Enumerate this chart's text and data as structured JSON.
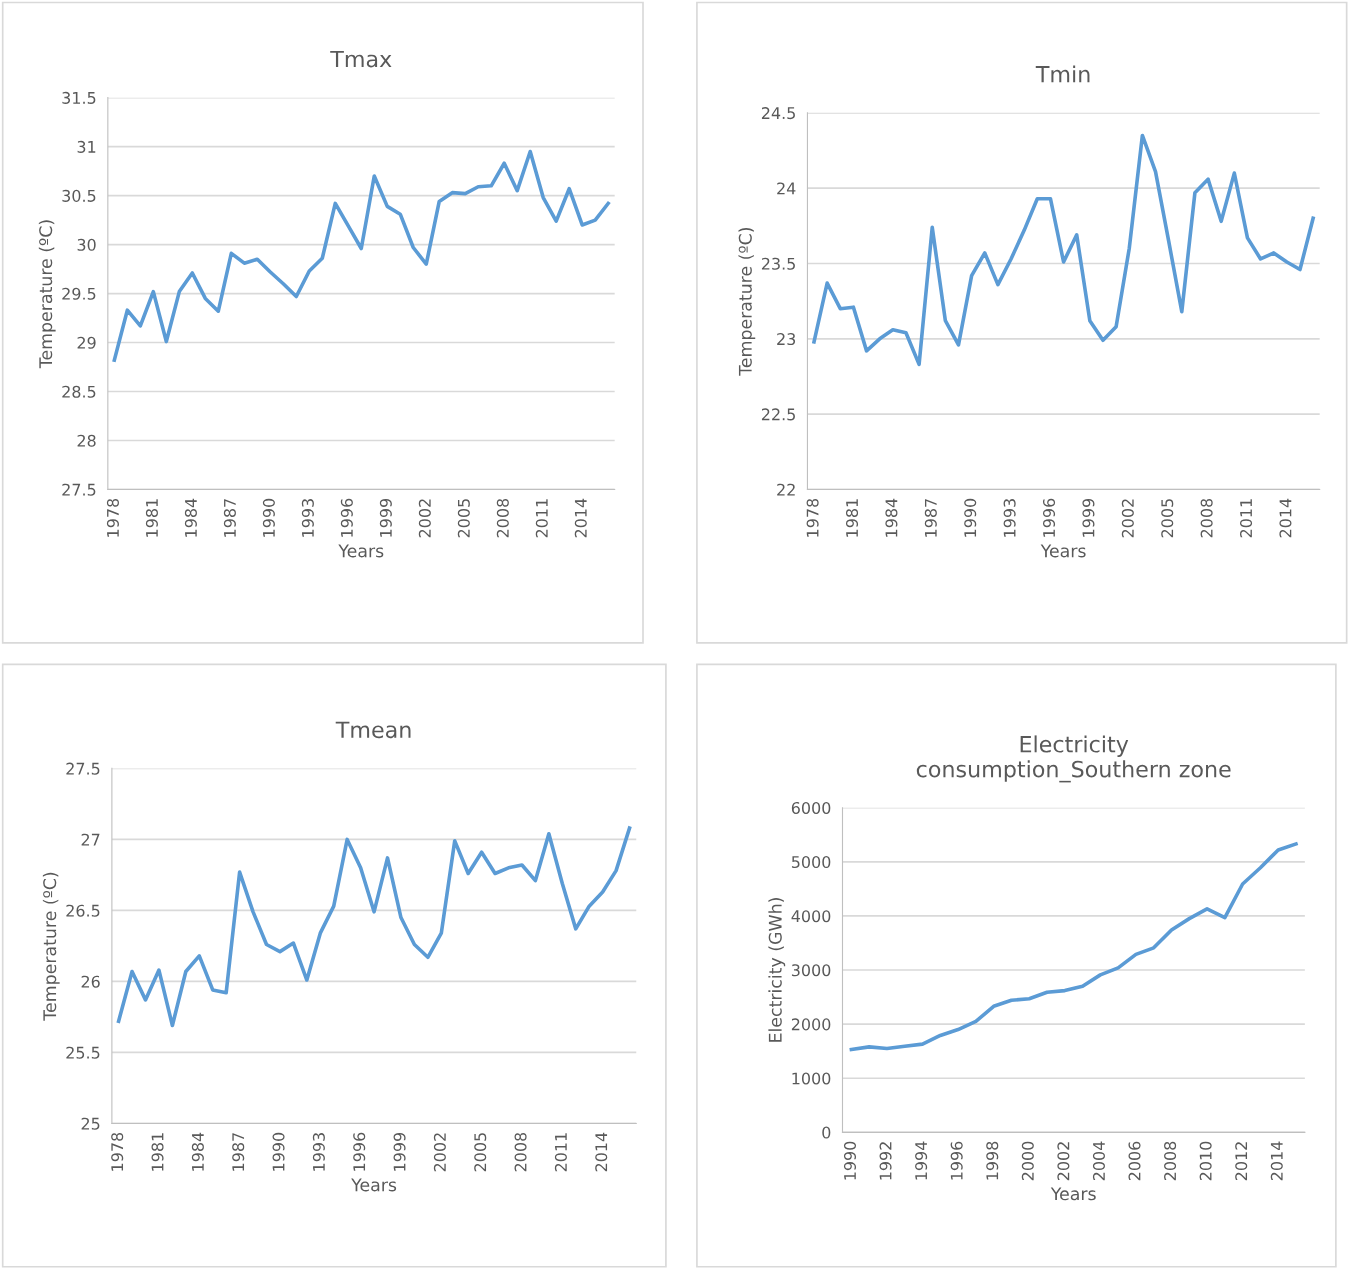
{
  "chart_data": [
    {
      "type": "line",
      "title": "Tmax",
      "xlabel": "Years",
      "ylabel": "Temperature (ºC)",
      "grid": "y",
      "categories": [
        "1978",
        null,
        null,
        "1981",
        null,
        null,
        "1984",
        null,
        null,
        "1987",
        null,
        null,
        "1990",
        null,
        null,
        "1993",
        null,
        null,
        "1996",
        null,
        null,
        "1999",
        null,
        null,
        "2002",
        null,
        null,
        "2005",
        null,
        null,
        "2008",
        null,
        null,
        "2011",
        null,
        null,
        "2014",
        null,
        null
      ],
      "ylim": [
        27.5,
        31.5
      ],
      "yticks": [
        27.5,
        28,
        28.5,
        29,
        29.5,
        30,
        30.5,
        31,
        31.5
      ],
      "series": [
        {
          "color": "#5b9bd5",
          "values": [
            28.82,
            29.33,
            29.17,
            29.52,
            29.01,
            29.52,
            29.71,
            29.45,
            29.32,
            29.91,
            29.81,
            29.85,
            29.72,
            29.6,
            29.47,
            29.73,
            29.86,
            30.42,
            30.19,
            29.96,
            30.7,
            30.39,
            30.31,
            29.97,
            29.8,
            30.44,
            30.53,
            30.52,
            30.59,
            30.6,
            30.83,
            30.55,
            30.95,
            30.48,
            30.24,
            30.57,
            30.2,
            30.25,
            30.42
          ]
        }
      ]
    },
    {
      "type": "line",
      "title": "Tmin",
      "xlabel": "Years",
      "ylabel": "Temperature (ºC)",
      "grid": "y",
      "categories": [
        "1978",
        null,
        null,
        "1981",
        null,
        null,
        "1984",
        null,
        null,
        "1987",
        null,
        null,
        "1990",
        null,
        null,
        "1993",
        null,
        null,
        "1996",
        null,
        null,
        "1999",
        null,
        null,
        "2002",
        null,
        null,
        "2005",
        null,
        null,
        "2008",
        null,
        null,
        "2011",
        null,
        null,
        "2014",
        null,
        null
      ],
      "ylim": [
        22,
        24.5
      ],
      "yticks": [
        22,
        22.5,
        23,
        23.5,
        24,
        24.5
      ],
      "series": [
        {
          "color": "#5b9bd5",
          "values": [
            22.98,
            23.37,
            23.2,
            23.21,
            22.92,
            23.0,
            23.06,
            23.04,
            22.83,
            23.74,
            23.12,
            22.96,
            23.42,
            23.57,
            23.36,
            23.53,
            23.72,
            23.93,
            23.93,
            23.51,
            23.69,
            23.12,
            22.99,
            23.08,
            23.6,
            24.35,
            24.11,
            23.65,
            23.18,
            23.97,
            24.06,
            23.78,
            24.1,
            23.67,
            23.53,
            23.57,
            23.51,
            23.46,
            23.8
          ]
        }
      ]
    },
    {
      "type": "line",
      "title": "Tmean",
      "xlabel": "Years",
      "ylabel": "Temperature (ºC)",
      "grid": "y",
      "categories": [
        "1978",
        null,
        null,
        "1981",
        null,
        null,
        "1984",
        null,
        null,
        "1987",
        null,
        null,
        "1990",
        null,
        null,
        "1993",
        null,
        null,
        "1996",
        null,
        null,
        "1999",
        null,
        null,
        "2002",
        null,
        null,
        "2005",
        null,
        null,
        "2008",
        null,
        null,
        "2011",
        null,
        null,
        "2014",
        null,
        null
      ],
      "ylim": [
        25,
        27.5
      ],
      "yticks": [
        25,
        25.5,
        26,
        26.5,
        27,
        27.5
      ],
      "series": [
        {
          "color": "#5b9bd5",
          "values": [
            25.72,
            26.07,
            25.87,
            26.08,
            25.69,
            26.07,
            26.18,
            25.94,
            25.92,
            26.77,
            26.49,
            26.26,
            26.21,
            26.27,
            26.01,
            26.34,
            26.53,
            27.0,
            26.8,
            26.49,
            26.87,
            26.45,
            26.26,
            26.17,
            26.34,
            26.99,
            26.76,
            26.91,
            26.76,
            26.8,
            26.82,
            26.71,
            27.04,
            26.69,
            26.37,
            26.53,
            26.63,
            26.78,
            27.08
          ]
        }
      ]
    },
    {
      "type": "line",
      "title": "Electricity\nconsumption_Southern zone",
      "xlabel": "Years",
      "ylabel": "Electricity (GWh)",
      "grid": "y",
      "categories": [
        "1990",
        null,
        "1992",
        null,
        "1994",
        null,
        "1996",
        null,
        "1998",
        null,
        "2000",
        null,
        "2002",
        null,
        "2004",
        null,
        "2006",
        null,
        "2008",
        null,
        "2010",
        null,
        "2012",
        null,
        "2014",
        null
      ],
      "ylim": [
        0,
        6000
      ],
      "yticks": [
        0,
        1000,
        2000,
        3000,
        4000,
        5000,
        6000
      ],
      "series": [
        {
          "color": "#5b9bd5",
          "values": [
            1530,
            1580,
            1550,
            1590,
            1630,
            1790,
            1900,
            2050,
            2330,
            2440,
            2470,
            2590,
            2620,
            2700,
            2910,
            3040,
            3290,
            3410,
            3740,
            3950,
            4130,
            3970,
            4590,
            4890,
            5220,
            5330
          ]
        }
      ]
    }
  ]
}
